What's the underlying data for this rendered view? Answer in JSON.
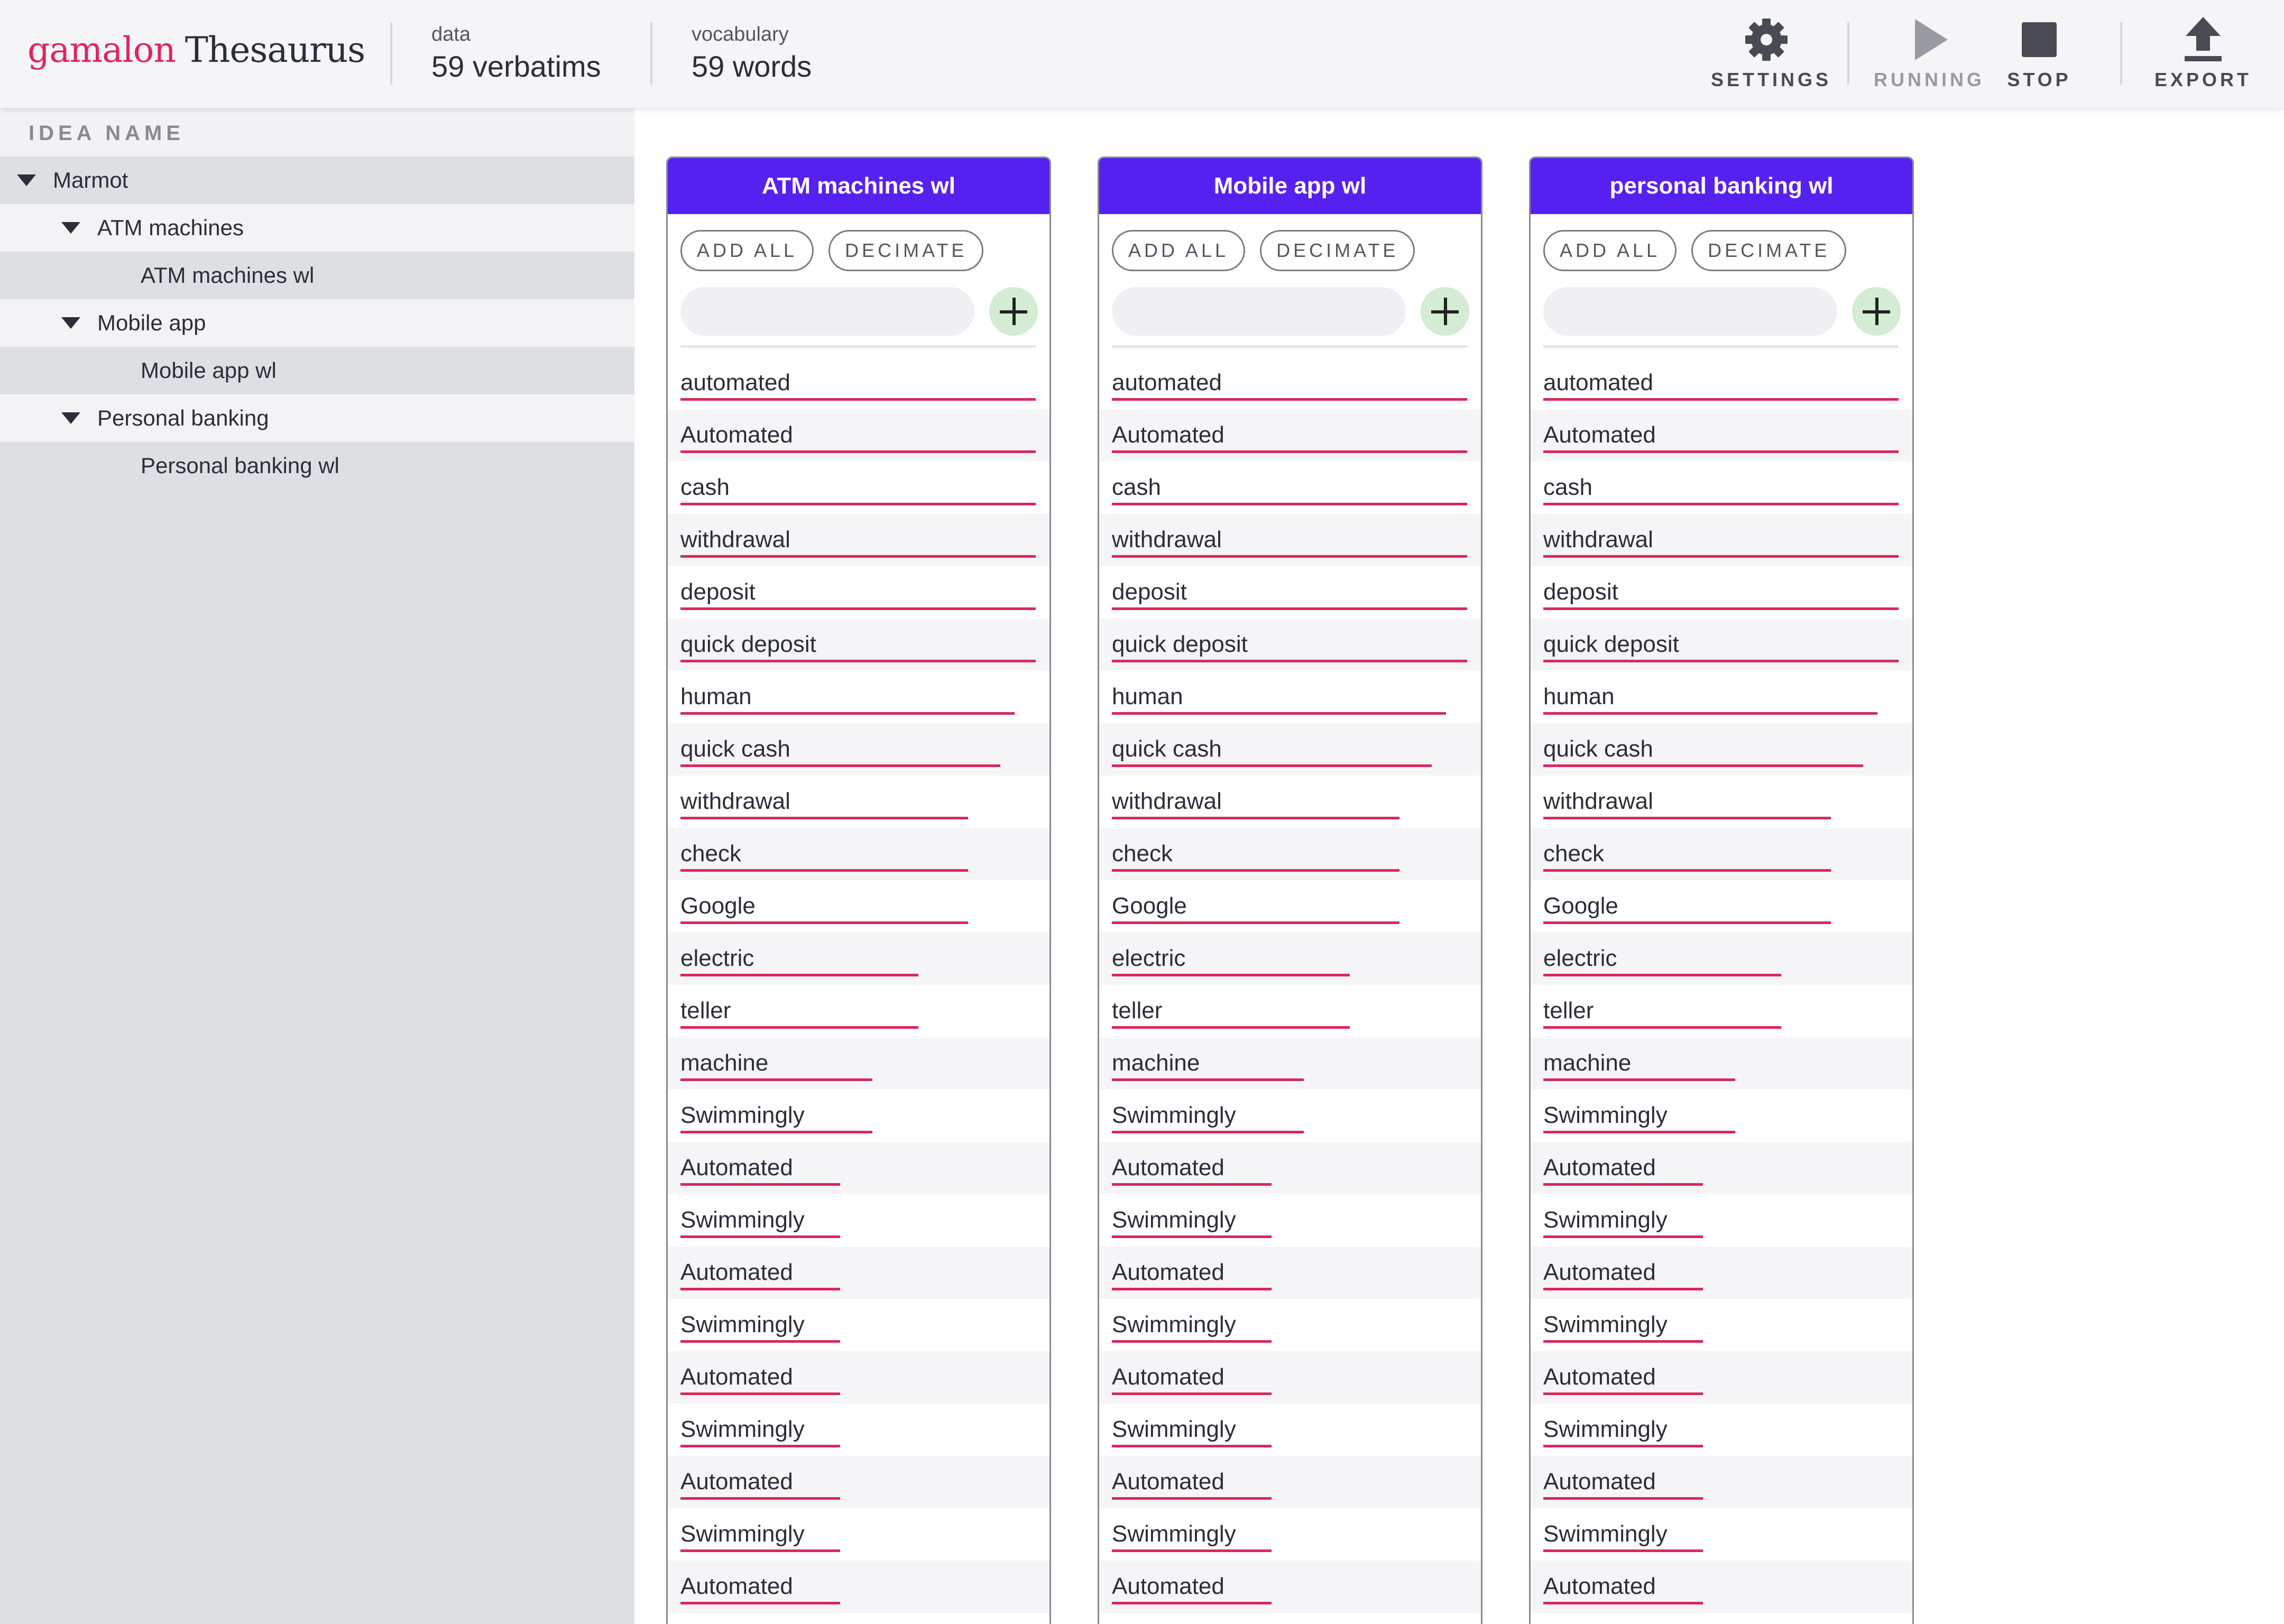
{
  "app": {
    "brand": "gamalon",
    "product": "Thesaurus"
  },
  "stats": {
    "data": {
      "label": "data",
      "value": "59 verbatims"
    },
    "vocabulary": {
      "label": "vocabulary",
      "value": "59 words"
    }
  },
  "toolbar": {
    "settings": "SETTINGS",
    "running": "RUNNING",
    "stop": "STOP",
    "export": "EXPORT"
  },
  "colors": {
    "accent": "#5621f0",
    "bar": "#d9285b",
    "brand": "#e0245e",
    "add_button": "#d3ecd3"
  },
  "sidebar": {
    "title": "IDEA NAME",
    "tree": [
      {
        "label": "Marmot",
        "level": 0,
        "expandable": true
      },
      {
        "label": "ATM machines",
        "level": 1,
        "expandable": true
      },
      {
        "label": "ATM machines wl",
        "level": 2,
        "expandable": false
      },
      {
        "label": "Mobile app",
        "level": 1,
        "expandable": true
      },
      {
        "label": "Mobile app wl",
        "level": 2,
        "expandable": false
      },
      {
        "label": "Personal banking",
        "level": 1,
        "expandable": true
      },
      {
        "label": "Personal banking wl",
        "level": 2,
        "expandable": false
      }
    ]
  },
  "card_actions": {
    "add_all": "ADD ALL",
    "decimate": "DECIMATE",
    "input_placeholder": ""
  },
  "cards": [
    {
      "title": "ATM machines wl"
    },
    {
      "title": "Mobile app wl"
    },
    {
      "title": "personal banking wl"
    }
  ],
  "words": [
    {
      "text": "automated",
      "weight": 1.0
    },
    {
      "text": "Automated",
      "weight": 1.0
    },
    {
      "text": "cash",
      "weight": 1.0
    },
    {
      "text": "withdrawal",
      "weight": 1.0
    },
    {
      "text": "deposit",
      "weight": 1.0
    },
    {
      "text": "quick deposit",
      "weight": 1.0
    },
    {
      "text": "human",
      "weight": 0.94
    },
    {
      "text": "quick cash",
      "weight": 0.9
    },
    {
      "text": "withdrawal",
      "weight": 0.81
    },
    {
      "text": "check",
      "weight": 0.81
    },
    {
      "text": "Google",
      "weight": 0.81
    },
    {
      "text": "electric",
      "weight": 0.67
    },
    {
      "text": "teller",
      "weight": 0.67
    },
    {
      "text": "machine",
      "weight": 0.54
    },
    {
      "text": "Swimmingly",
      "weight": 0.54
    },
    {
      "text": "Automated",
      "weight": 0.45
    },
    {
      "text": "Swimmingly",
      "weight": 0.45
    },
    {
      "text": "Automated",
      "weight": 0.45
    },
    {
      "text": "Swimmingly",
      "weight": 0.45
    },
    {
      "text": "Automated",
      "weight": 0.45
    },
    {
      "text": "Swimmingly",
      "weight": 0.45
    },
    {
      "text": "Automated",
      "weight": 0.45
    },
    {
      "text": "Swimmingly",
      "weight": 0.45
    },
    {
      "text": "Automated",
      "weight": 0.45
    }
  ]
}
